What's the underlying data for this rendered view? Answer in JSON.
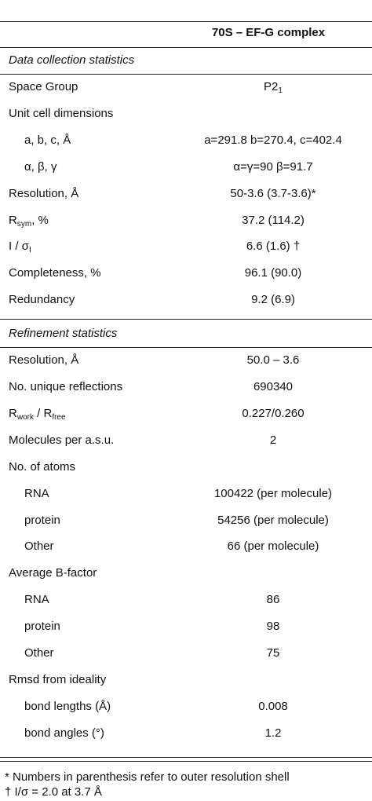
{
  "table": {
    "header": "70S – EF-G complex",
    "sections": [
      {
        "title": "Data collection statistics",
        "rows": [
          {
            "label": [
              {
                "text": "Space Group"
              }
            ],
            "value": [
              {
                "text": "P2"
              },
              {
                "text": "1",
                "sub": true
              }
            ]
          },
          {
            "label": [
              {
                "text": "Unit cell dimensions"
              }
            ]
          },
          {
            "label": [
              {
                "text": "a, b, c, Å"
              }
            ],
            "indent": true,
            "value": [
              {
                "text": "a=291.8 b=270.4, c=402.4"
              }
            ]
          },
          {
            "label": [
              {
                "text": "α, β, γ"
              }
            ],
            "indent": true,
            "value": [
              {
                "text": "α=γ=90 β=91.7"
              }
            ]
          },
          {
            "label": [
              {
                "text": "Resolution, Å"
              }
            ],
            "value": [
              {
                "text": "50-3.6 (3.7-3.6)*"
              }
            ]
          },
          {
            "label": [
              {
                "text": "R"
              },
              {
                "text": "sym",
                "sub": true
              },
              {
                "text": ", %"
              }
            ],
            "value": [
              {
                "text": "37.2 (114.2)"
              }
            ]
          },
          {
            "label": [
              {
                "text": "I / σ"
              },
              {
                "text": "I",
                "sub": true
              }
            ],
            "value": [
              {
                "text": "6.6 (1.6) †"
              }
            ]
          },
          {
            "label": [
              {
                "text": "Completeness, %"
              }
            ],
            "value": [
              {
                "text": "96.1 (90.0)"
              }
            ]
          },
          {
            "label": [
              {
                "text": "Redundancy"
              }
            ],
            "value": [
              {
                "text": "9.2 (6.9)"
              }
            ]
          }
        ]
      },
      {
        "title": "Refinement statistics",
        "rows": [
          {
            "label": [
              {
                "text": "Resolution, Å"
              }
            ],
            "value": [
              {
                "text": "50.0 – 3.6"
              }
            ]
          },
          {
            "label": [
              {
                "text": "No. unique reflections"
              }
            ],
            "value": [
              {
                "text": "690340"
              }
            ]
          },
          {
            "label": [
              {
                "text": "R"
              },
              {
                "text": "work",
                "sub": true
              },
              {
                "text": " / R"
              },
              {
                "text": "free",
                "sub": true
              }
            ],
            "value": [
              {
                "text": "0.227/0.260"
              }
            ]
          },
          {
            "label": [
              {
                "text": "Molecules per a.s.u."
              }
            ],
            "value": [
              {
                "text": "2"
              }
            ]
          },
          {
            "label": [
              {
                "text": "No. of atoms"
              }
            ]
          },
          {
            "label": [
              {
                "text": "RNA"
              }
            ],
            "indent": true,
            "value": [
              {
                "text": "100422 (per molecule)"
              }
            ]
          },
          {
            "label": [
              {
                "text": "protein"
              }
            ],
            "indent": true,
            "value": [
              {
                "text": "54256 (per molecule)"
              }
            ]
          },
          {
            "label": [
              {
                "text": "Other"
              }
            ],
            "indent": true,
            "value": [
              {
                "text": "66 (per molecule)"
              }
            ]
          },
          {
            "label": [
              {
                "text": "Average B-factor"
              }
            ]
          },
          {
            "label": [
              {
                "text": "RNA"
              }
            ],
            "indent": true,
            "value": [
              {
                "text": "86"
              }
            ]
          },
          {
            "label": [
              {
                "text": "protein"
              }
            ],
            "indent": true,
            "value": [
              {
                "text": "98"
              }
            ]
          },
          {
            "label": [
              {
                "text": "Other"
              }
            ],
            "indent": true,
            "value": [
              {
                "text": "75"
              }
            ]
          },
          {
            "label": [
              {
                "text": "Rmsd from ideality"
              }
            ]
          },
          {
            "label": [
              {
                "text": "bond lengths (Å)"
              }
            ],
            "indent": true,
            "value": [
              {
                "text": "0.008"
              }
            ]
          },
          {
            "label": [
              {
                "text": "bond angles (°)"
              }
            ],
            "indent": true,
            "value": [
              {
                "text": "1.2"
              }
            ]
          }
        ]
      }
    ],
    "footnotes": [
      "* Numbers in parenthesis refer to outer resolution shell",
      "† I/σ = 2.0 at 3.7 Å"
    ]
  }
}
